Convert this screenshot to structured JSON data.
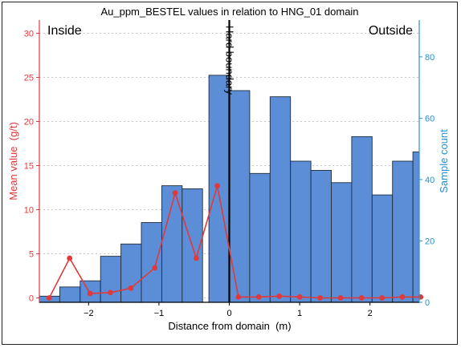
{
  "chart_data": {
    "type": "bar",
    "title": "Au_ppm_BESTEL values in relation to HNG_01 domain",
    "xlabel": "Distance from domain  (m)",
    "ylabel_left": "Mean value  (g/t)",
    "ylabel_right": "Sample count",
    "xlim": [
      -2.7,
      2.7
    ],
    "ylim_left": [
      -0.5,
      31.5
    ],
    "ylim_right": [
      0,
      92
    ],
    "x_ticks": [
      -2,
      -1,
      0,
      1,
      2
    ],
    "x_tick_labels": [
      "−2",
      "−1",
      "0",
      "1",
      "2"
    ],
    "y_left_ticks": [
      0,
      5,
      10,
      15,
      20,
      25,
      30
    ],
    "y_right_ticks": [
      0,
      20,
      40,
      60,
      80
    ],
    "grid": true,
    "bin_width": 0.29,
    "bins": [
      {
        "left": -2.7,
        "count": 2
      },
      {
        "left": -2.41,
        "count": 5
      },
      {
        "left": -2.12,
        "count": 7
      },
      {
        "left": -1.83,
        "count": 15
      },
      {
        "left": -1.54,
        "count": 19
      },
      {
        "left": -1.25,
        "count": 26
      },
      {
        "left": -0.96,
        "count": 38
      },
      {
        "left": -0.67,
        "count": 37
      },
      {
        "left": -0.29,
        "count": 74
      },
      {
        "left": 0.0,
        "count": 69
      },
      {
        "left": 0.29,
        "count": 42
      },
      {
        "left": 0.58,
        "count": 67
      },
      {
        "left": 0.87,
        "count": 46
      },
      {
        "left": 1.16,
        "count": 43
      },
      {
        "left": 1.45,
        "count": 39
      },
      {
        "left": 1.74,
        "count": 54
      },
      {
        "left": 2.03,
        "count": 35
      },
      {
        "left": 2.32,
        "count": 46
      },
      {
        "left": 2.61,
        "count": 49
      }
    ],
    "mean_series": {
      "color": "#e0393b",
      "points": [
        [
          -2.56,
          0.0
        ],
        [
          -2.27,
          4.5
        ],
        [
          -1.98,
          0.5
        ],
        [
          -1.69,
          0.6
        ],
        [
          -1.4,
          1.1
        ],
        [
          -1.06,
          3.4
        ],
        [
          -0.77,
          11.9
        ],
        [
          -0.47,
          4.5
        ],
        [
          -0.17,
          12.7
        ],
        [
          0.13,
          0.1
        ],
        [
          0.42,
          0.1
        ],
        [
          0.71,
          0.2
        ],
        [
          1.0,
          0.1
        ],
        [
          1.29,
          0.0
        ],
        [
          1.58,
          0.0
        ],
        [
          1.88,
          0.0
        ],
        [
          2.17,
          0.0
        ],
        [
          2.46,
          0.1
        ],
        [
          2.72,
          0.1
        ]
      ]
    },
    "boundary": {
      "x": 0,
      "label": "Hard boundary"
    },
    "annotations": {
      "left": "Inside",
      "right": "Outside"
    },
    "colors": {
      "bar": "#5b8ed6",
      "bar_edge": "#1f2d3d",
      "left_axis": "#e0393b",
      "right_axis": "#2b8fd0",
      "grid": "#b5b5b5"
    }
  }
}
